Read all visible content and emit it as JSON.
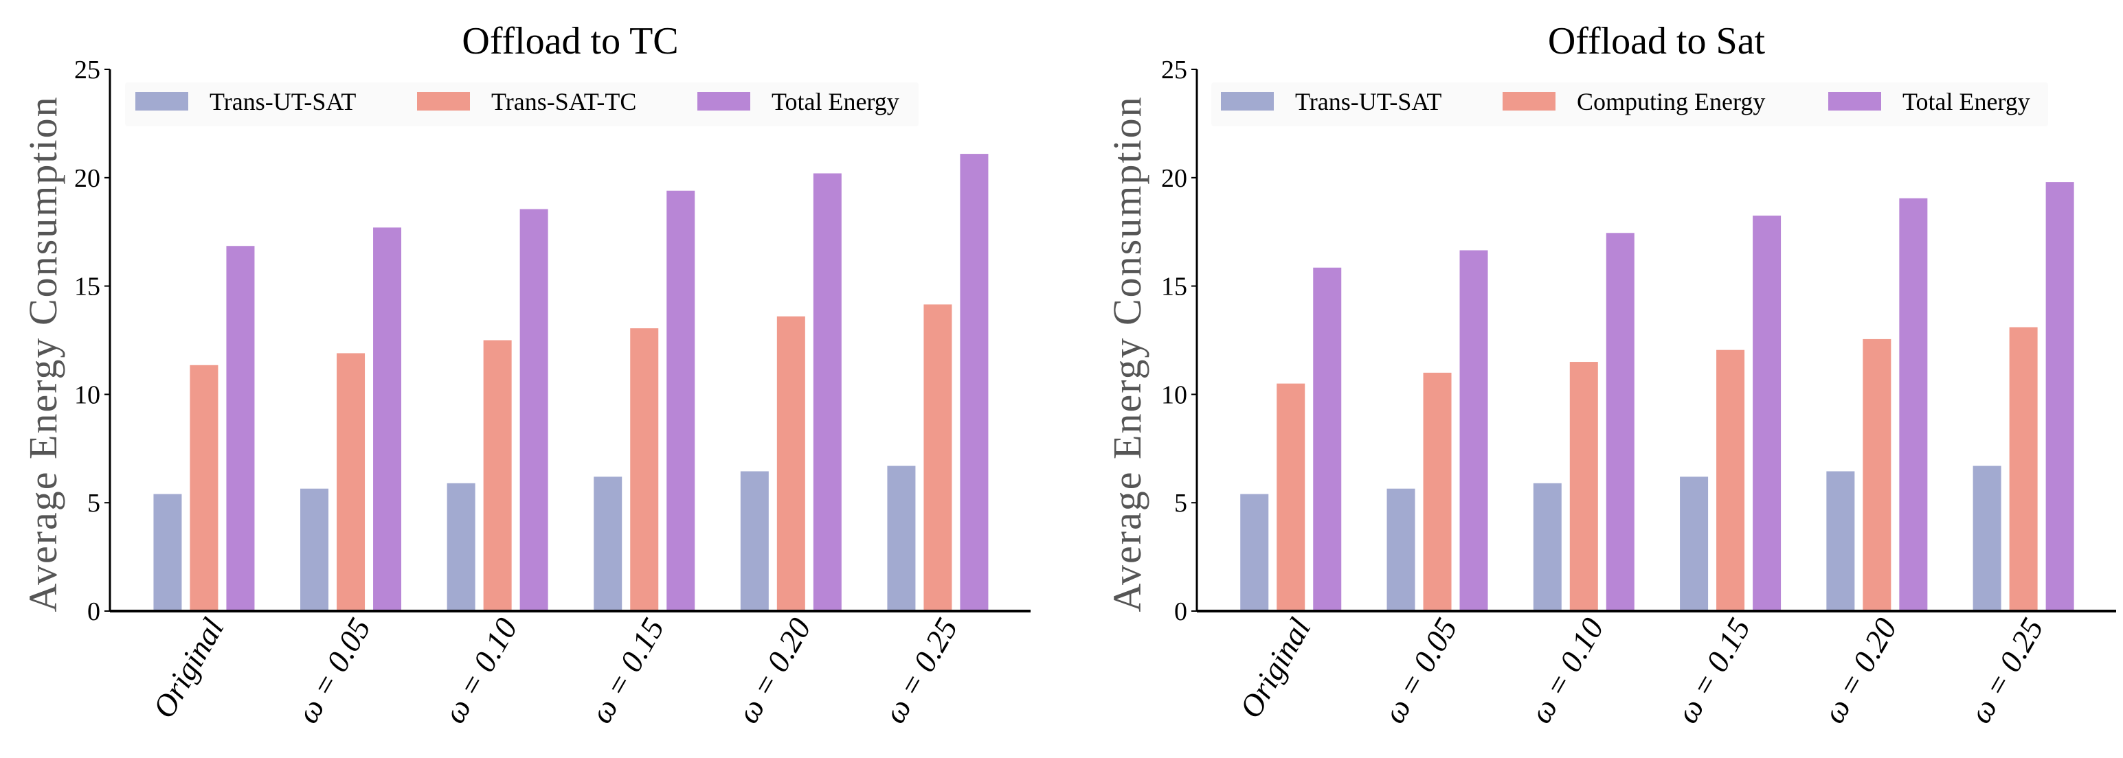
{
  "colors": {
    "Trans-UT-SAT": "#a2aad0",
    "second": "#f09a8c",
    "Total Energy": "#b886d6",
    "legend_bg": "#fafafa"
  },
  "chart_data": [
    {
      "type": "bar",
      "title": "Offload to TC",
      "xlabel": "",
      "ylabel": "Average Energy Consumption",
      "ylim": [
        0,
        25
      ],
      "yticks": [
        "0",
        "5",
        "10",
        "15",
        "20",
        "25"
      ],
      "categories": [
        "Original",
        "ω = 0.05",
        "ω = 0.10",
        "ω = 0.15",
        "ω = 0.20",
        "ω = 0.25"
      ],
      "legend_position": "top",
      "series": [
        {
          "name": "Trans-UT-SAT",
          "values": [
            5.4,
            5.65,
            5.9,
            6.2,
            6.45,
            6.7
          ]
        },
        {
          "name": "Trans-SAT-TC",
          "values": [
            11.35,
            11.9,
            12.5,
            13.05,
            13.6,
            14.15
          ]
        },
        {
          "name": "Total Energy",
          "values": [
            16.85,
            17.7,
            18.55,
            19.4,
            20.2,
            21.1
          ]
        }
      ]
    },
    {
      "type": "bar",
      "title": "Offload to Sat",
      "xlabel": "",
      "ylabel": "Average Energy Consumption",
      "ylim": [
        0,
        25
      ],
      "yticks": [
        "0",
        "5",
        "10",
        "15",
        "20",
        "25"
      ],
      "categories": [
        "Original",
        "ω = 0.05",
        "ω = 0.10",
        "ω = 0.15",
        "ω = 0.20",
        "ω = 0.25"
      ],
      "legend_position": "top",
      "series": [
        {
          "name": "Trans-UT-SAT",
          "values": [
            5.4,
            5.65,
            5.9,
            6.2,
            6.45,
            6.7
          ]
        },
        {
          "name": "Computing Energy",
          "values": [
            10.5,
            11.0,
            11.5,
            12.05,
            12.55,
            13.1
          ]
        },
        {
          "name": "Total Energy",
          "values": [
            15.85,
            16.65,
            17.45,
            18.25,
            19.05,
            19.8
          ]
        }
      ]
    }
  ]
}
